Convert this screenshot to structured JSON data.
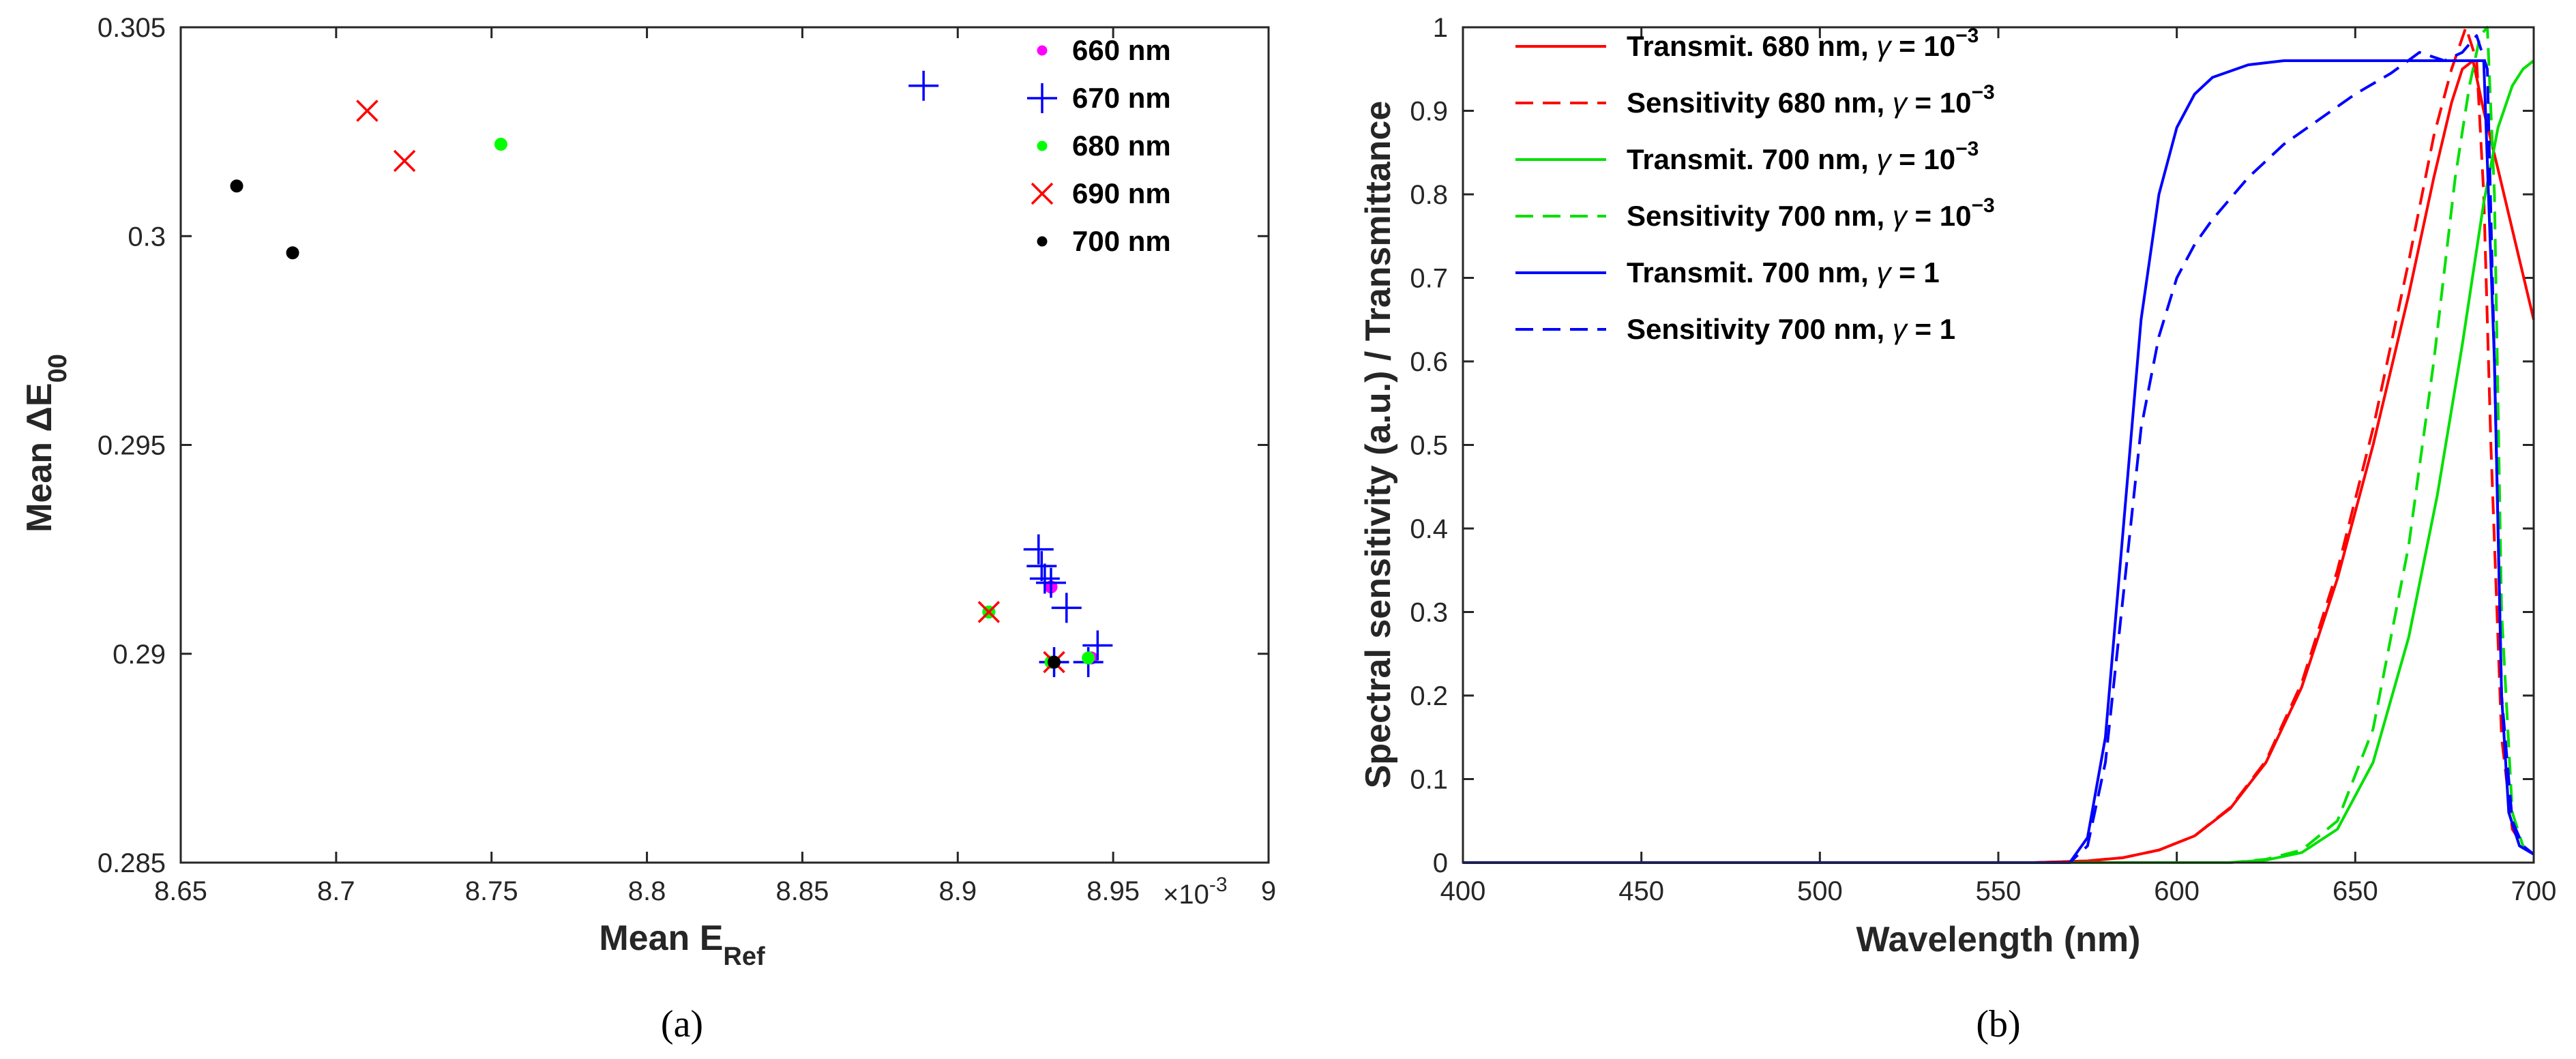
{
  "chart_data": [
    {
      "type": "scatter",
      "panel_label": "(a)",
      "title": "",
      "xlabel": "Mean E",
      "xlabel_sub": "Ref",
      "ylabel": "Mean ΔE",
      "ylabel_sub": "00",
      "x_multiplier": "×10",
      "x_multiplier_exp": "-3",
      "xlim": [
        8.65,
        9.0
      ],
      "ylim": [
        0.285,
        0.305
      ],
      "xticks": [
        "8.65",
        "8.7",
        "8.75",
        "8.8",
        "8.85",
        "8.9",
        "8.95",
        "9"
      ],
      "yticks": [
        "0.285",
        "0.29",
        "0.295",
        "0.3",
        "0.305"
      ],
      "grid": false,
      "legend_position": "top-right",
      "series": [
        {
          "name": "660 nm",
          "marker": "dot",
          "color": "#ff00ff",
          "points": [
            [
              8.93,
              0.2916
            ],
            [
              8.91,
              0.291
            ],
            [
              8.93,
              0.2898
            ],
            [
              8.943,
              0.2899
            ]
          ]
        },
        {
          "name": "670 nm",
          "marker": "plus",
          "color": "#0000ff",
          "points": [
            [
              8.889,
              0.3036
            ],
            [
              8.926,
              0.2925
            ],
            [
              8.927,
              0.2921
            ],
            [
              8.928,
              0.2918
            ],
            [
              8.93,
              0.2917
            ],
            [
              8.935,
              0.2911
            ],
            [
              8.945,
              0.2902
            ],
            [
              8.942,
              0.2898
            ],
            [
              8.931,
              0.2898
            ]
          ]
        },
        {
          "name": "680 nm",
          "marker": "dot",
          "color": "#00ff00",
          "points": [
            [
              8.753,
              0.3022
            ],
            [
              8.91,
              0.291
            ],
            [
              8.942,
              0.2899
            ],
            [
              8.93,
              0.2898
            ]
          ]
        },
        {
          "name": "690 nm",
          "marker": "x",
          "color": "#ff0000",
          "points": [
            [
              8.71,
              0.303
            ],
            [
              8.722,
              0.3018
            ],
            [
              8.91,
              0.291
            ],
            [
              8.931,
              0.2898
            ]
          ]
        },
        {
          "name": "700 nm",
          "marker": "dot",
          "color": "#000000",
          "points": [
            [
              8.668,
              0.3012
            ],
            [
              8.686,
              0.2996
            ],
            [
              8.931,
              0.2898
            ]
          ]
        }
      ]
    },
    {
      "type": "line",
      "panel_label": "(b)",
      "title": "",
      "xlabel": "Wavelength (nm)",
      "ylabel": "Spectral sensitivity (a.u.) / Transmittance",
      "xlim": [
        400,
        700
      ],
      "ylim": [
        0,
        1
      ],
      "xticks": [
        "400",
        "450",
        "500",
        "550",
        "600",
        "650",
        "700"
      ],
      "yticks": [
        "0",
        "0.1",
        "0.2",
        "0.3",
        "0.4",
        "0.5",
        "0.6",
        "0.7",
        "0.8",
        "0.9",
        "1"
      ],
      "grid": false,
      "legend_position": "top-left",
      "series": [
        {
          "name": "Transmit. 680 nm, ",
          "gamma": "γ = 10",
          "gamma_exp": "−3",
          "color": "#ff0000",
          "dash": false,
          "x": [
            400,
            560,
            575,
            585,
            595,
            605,
            615,
            625,
            635,
            645,
            655,
            665,
            672,
            677,
            680,
            683,
            686,
            690,
            695,
            700
          ],
          "y": [
            0,
            0,
            0.002,
            0.006,
            0.015,
            0.032,
            0.065,
            0.12,
            0.21,
            0.34,
            0.5,
            0.68,
            0.82,
            0.91,
            0.95,
            0.96,
            0.9,
            0.83,
            0.74,
            0.65
          ]
        },
        {
          "name": "Sensitivity 680 nm, ",
          "gamma": "γ = 10",
          "gamma_exp": "−3",
          "color": "#ff0000",
          "dash": true,
          "x": [
            400,
            560,
            575,
            585,
            595,
            605,
            615,
            625,
            635,
            645,
            655,
            665,
            672,
            677,
            681,
            684,
            686,
            688,
            691,
            694,
            697,
            700
          ],
          "y": [
            0,
            0,
            0.002,
            0.006,
            0.015,
            0.032,
            0.066,
            0.122,
            0.215,
            0.35,
            0.52,
            0.72,
            0.87,
            0.95,
            1.0,
            0.96,
            0.8,
            0.5,
            0.15,
            0.04,
            0.02,
            0.01
          ]
        },
        {
          "name": "Transmit. 700 nm, ",
          "gamma": "γ = 10",
          "gamma_exp": "−3",
          "color": "#00e000",
          "dash": false,
          "x": [
            400,
            615,
            625,
            635,
            645,
            655,
            665,
            673,
            680,
            686,
            690,
            694,
            697,
            700
          ],
          "y": [
            0,
            0,
            0.003,
            0.012,
            0.04,
            0.12,
            0.27,
            0.44,
            0.62,
            0.79,
            0.88,
            0.93,
            0.95,
            0.96
          ]
        },
        {
          "name": "Sensitivity 700 nm, ",
          "gamma": "γ = 10",
          "gamma_exp": "−3",
          "color": "#00e000",
          "dash": true,
          "x": [
            400,
            615,
            625,
            635,
            645,
            655,
            665,
            672,
            678,
            682,
            685,
            687,
            689,
            691,
            694,
            697,
            700
          ],
          "y": [
            0,
            0,
            0.004,
            0.015,
            0.05,
            0.16,
            0.38,
            0.6,
            0.82,
            0.93,
            0.99,
            1.0,
            0.8,
            0.3,
            0.06,
            0.02,
            0.01
          ]
        },
        {
          "name": "Transmit. 700 nm, ",
          "gamma": "γ = 1",
          "gamma_exp": "",
          "color": "#0000ff",
          "dash": false,
          "x": [
            400,
            570,
            575,
            580,
            585,
            590,
            595,
            600,
            605,
            610,
            620,
            630,
            640,
            660,
            686,
            689,
            691,
            693,
            696,
            700
          ],
          "y": [
            0,
            0,
            0.03,
            0.15,
            0.4,
            0.65,
            0.8,
            0.88,
            0.92,
            0.94,
            0.955,
            0.96,
            0.96,
            0.96,
            0.96,
            0.6,
            0.2,
            0.06,
            0.02,
            0.01
          ]
        },
        {
          "name": "Sensitivity 700 nm, ",
          "gamma": "γ = 1",
          "gamma_exp": "",
          "color": "#0000ff",
          "dash": true,
          "x": [
            400,
            570,
            575,
            580,
            585,
            590,
            595,
            600,
            605,
            610,
            620,
            630,
            640,
            650,
            660,
            668,
            675,
            680,
            684,
            687,
            689,
            691,
            694,
            697,
            700
          ],
          "y": [
            0,
            0,
            0.02,
            0.12,
            0.32,
            0.52,
            0.63,
            0.7,
            0.74,
            0.77,
            0.82,
            0.86,
            0.89,
            0.92,
            0.945,
            0.97,
            0.96,
            0.97,
            0.99,
            0.95,
            0.6,
            0.2,
            0.05,
            0.02,
            0.01
          ]
        }
      ]
    }
  ]
}
